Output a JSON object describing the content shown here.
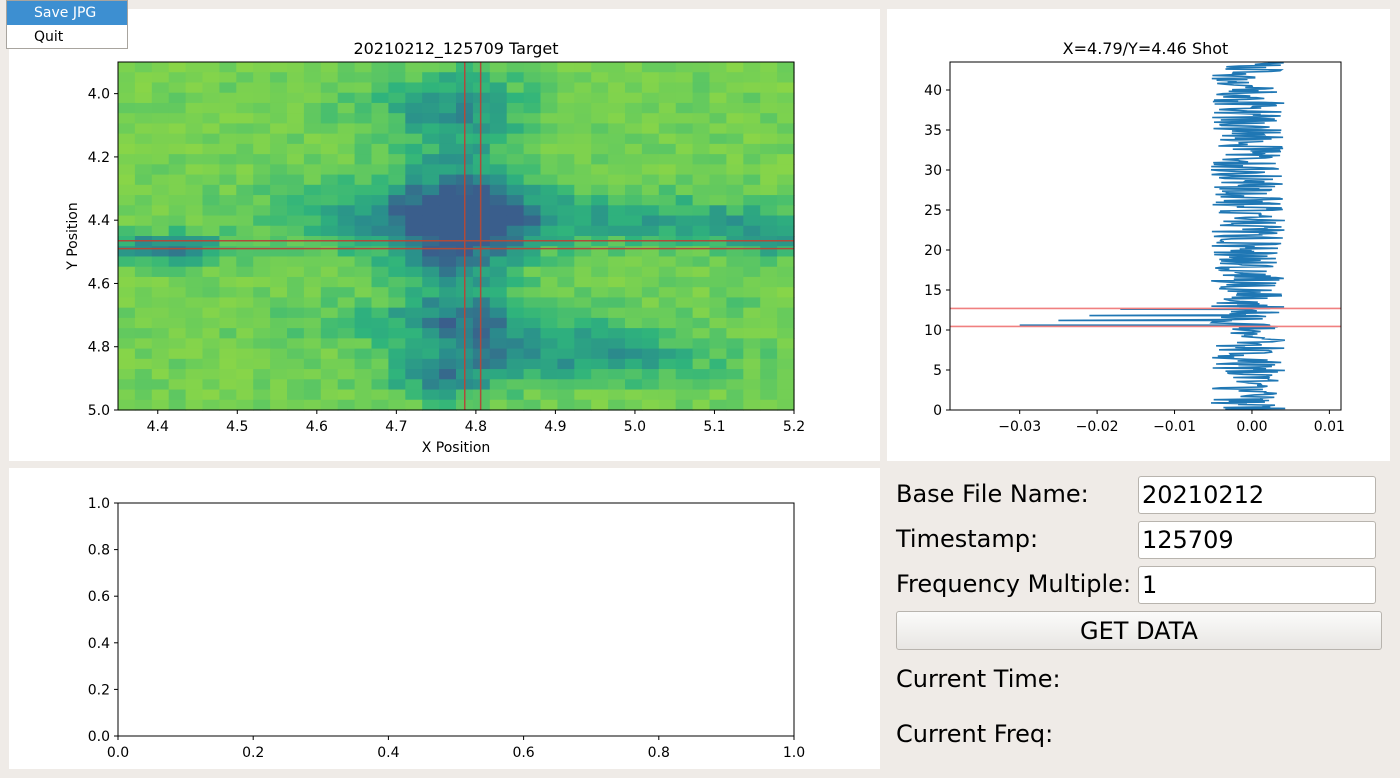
{
  "menu": {
    "items": [
      {
        "label": "Save JPG",
        "active": true
      },
      {
        "label": "Quit",
        "active": false
      }
    ]
  },
  "controls": {
    "base_file_name_label": "Base File Name:",
    "base_file_name_value": "20210212",
    "timestamp_label": "Timestamp:",
    "timestamp_value": "125709",
    "frequency_multiple_label": "Frequency Multiple:",
    "frequency_multiple_value": "1",
    "get_data_label": "GET DATA",
    "current_time_label": "Current Time:",
    "current_freq_label": "Current Freq:"
  },
  "chart_data": [
    {
      "type": "heatmap",
      "title": "20210212_125709 Target",
      "xlabel": "X Position",
      "ylabel": "Y Position",
      "xlim": [
        4.35,
        5.2
      ],
      "ylim": [
        3.9,
        5.0
      ],
      "y_inverted": true,
      "x_ticks": [
        "4.4",
        "4.5",
        "4.6",
        "4.7",
        "4.8",
        "4.9",
        "5.0",
        "5.1",
        "5.2"
      ],
      "y_ticks": [
        "4.0",
        "4.2",
        "4.4",
        "4.6",
        "4.8",
        "5.0"
      ],
      "grid_cols": 40,
      "grid_rows": 34,
      "colormap": [
        "#3a5e8c",
        "#2a8e8c",
        "#2fb47c",
        "#6ccd59",
        "#8fd744"
      ],
      "crosshair": {
        "x": [
          4.786,
          4.806
        ],
        "y": [
          4.465,
          4.49
        ],
        "color": "#b04a3a"
      },
      "features": [
        {
          "x": 4.78,
          "y": 4.45,
          "sx": 0.05,
          "sy": 0.3,
          "amp": 0.55
        },
        {
          "x": 4.76,
          "y": 4.04,
          "sx": 0.09,
          "sy": 0.07,
          "amp": 0.35
        },
        {
          "x": 4.72,
          "y": 4.4,
          "sx": 0.12,
          "sy": 0.09,
          "amp": 0.45
        },
        {
          "x": 4.9,
          "y": 4.39,
          "sx": 0.17,
          "sy": 0.06,
          "amp": 0.38
        },
        {
          "x": 5.12,
          "y": 4.42,
          "sx": 0.07,
          "sy": 0.05,
          "amp": 0.3
        },
        {
          "x": 4.4,
          "y": 4.49,
          "sx": 0.06,
          "sy": 0.035,
          "amp": 0.65
        },
        {
          "x": 4.78,
          "y": 4.72,
          "sx": 0.14,
          "sy": 0.05,
          "amp": 0.32
        },
        {
          "x": 4.93,
          "y": 4.83,
          "sx": 0.12,
          "sy": 0.06,
          "amp": 0.5
        },
        {
          "x": 4.75,
          "y": 4.9,
          "sx": 0.05,
          "sy": 0.05,
          "amp": 0.35
        },
        {
          "x": 5.18,
          "y": 4.47,
          "sx": 0.03,
          "sy": 0.04,
          "amp": 0.3
        },
        {
          "x": 5.13,
          "y": 4.66,
          "sx": 0.02,
          "sy": 0.02,
          "amp": 0.25
        }
      ]
    },
    {
      "type": "line",
      "title": "X=4.79/Y=4.46 Shot",
      "xlabel": "",
      "ylabel": "",
      "xlim": [
        -0.039,
        0.0115
      ],
      "ylim": [
        0,
        43.5
      ],
      "x_ticks": [
        -0.03,
        -0.02,
        -0.01,
        0.0,
        0.01
      ],
      "x_tick_labels": [
        "−0.03",
        "−0.02",
        "−0.01",
        "0.00",
        "0.01"
      ],
      "y_ticks": [
        0,
        5,
        10,
        15,
        20,
        25,
        30,
        35,
        40
      ],
      "series_color": "#1f77b4",
      "num_samples": 440,
      "baseline_center": -0.0005,
      "noise_amplitude": 0.0048,
      "spike": [
        {
          "y": 12.6,
          "x": -0.017
        },
        {
          "y": 11.8,
          "x": -0.021
        },
        {
          "y": 11.2,
          "x": -0.025
        },
        {
          "y": 10.6,
          "x": -0.03
        },
        {
          "y": 10.45,
          "x": 0.0025
        }
      ],
      "hlines": [
        {
          "y": 12.7,
          "color": "#f08080"
        },
        {
          "y": 10.45,
          "color": "#f08080"
        }
      ]
    },
    {
      "type": "line",
      "title": "",
      "xlabel": "",
      "ylabel": "",
      "xlim": [
        0,
        1
      ],
      "ylim": [
        0,
        1
      ],
      "x_ticks": [
        "0.0",
        "0.2",
        "0.4",
        "0.6",
        "0.8",
        "1.0"
      ],
      "y_ticks": [
        "0.0",
        "0.2",
        "0.4",
        "0.6",
        "0.8",
        "1.0"
      ],
      "series": []
    }
  ]
}
